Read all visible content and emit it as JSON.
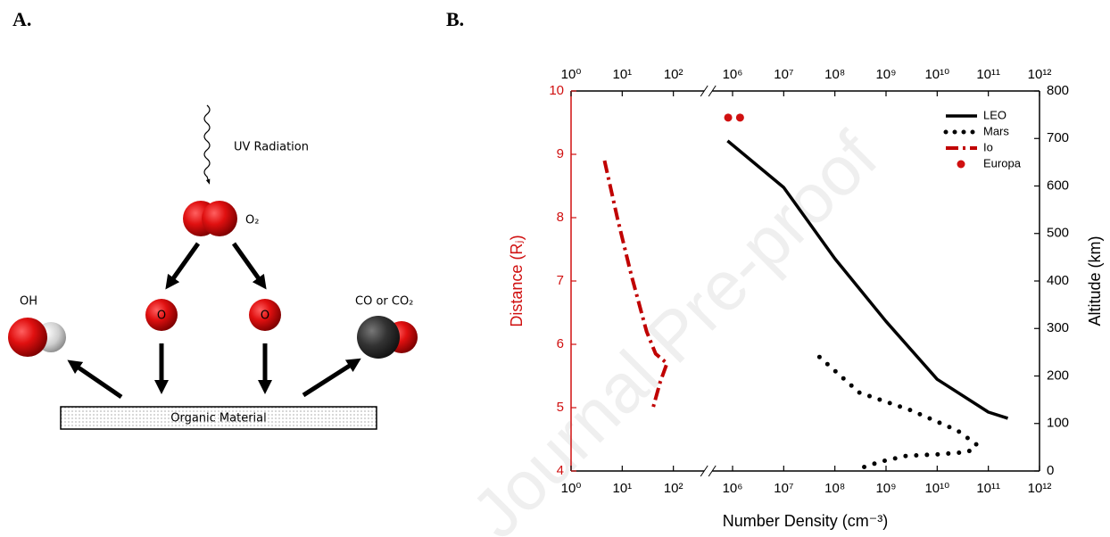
{
  "panel_a": {
    "label": "A.",
    "uv": "UV Radiation",
    "o2": "O₂",
    "o_left": "O",
    "o_right": "O",
    "oh": "OH",
    "co": "CO or CO₂",
    "substrate": "Organic Material"
  },
  "panel_b_label": "B.",
  "watermark": "Journal Pre-proof",
  "chart_data": {
    "type": "line",
    "xlabel": "Number Density (cm⁻³)",
    "ylabel": "Distance (Rⱼ)",
    "y2label": "Altitude (km)",
    "xscale": "log",
    "xlim": [
      1,
      1000000000000
    ],
    "xbreak": [
      400,
      400000
    ],
    "xticks": [
      {
        "value": 1,
        "label": "10⁰"
      },
      {
        "value": 10,
        "label": "10¹"
      },
      {
        "value": 100,
        "label": "10²"
      },
      {
        "value": 1000000,
        "label": "10⁶"
      },
      {
        "value": 10000000,
        "label": "10⁷"
      },
      {
        "value": 100000000,
        "label": "10⁸"
      },
      {
        "value": 1000000000,
        "label": "10⁹"
      },
      {
        "value": 10000000000,
        "label": "10¹⁰"
      },
      {
        "value": 100000000000,
        "label": "10¹¹"
      },
      {
        "value": 1000000000000,
        "label": "10¹²"
      }
    ],
    "ylim": [
      4,
      10
    ],
    "yticks": [
      4,
      5,
      6,
      7,
      8,
      9,
      10
    ],
    "y_color": "#d01010",
    "y2lim": [
      0,
      800
    ],
    "y2ticks": [
      0,
      100,
      200,
      300,
      400,
      500,
      600,
      700,
      800
    ],
    "legend": "upper right",
    "grid": false,
    "series": [
      {
        "name": "LEO",
        "color": "#000000",
        "style": "solid",
        "axis": "y2",
        "x": [
          800000,
          10000000,
          100000000,
          1000000000,
          10000000000,
          100000000000,
          240000000000
        ],
        "values": [
          695,
          597,
          447,
          315,
          193,
          124,
          111
        ]
      },
      {
        "name": "Mars",
        "color": "#000000",
        "style": "dotted",
        "axis": "y2",
        "x": [
          50000000,
          300000000,
          3000000000,
          25000000000,
          60000000000,
          40000000000,
          10000000000,
          2500000000,
          800000000,
          300000000
        ],
        "values": [
          240,
          165,
          128,
          85,
          55,
          40,
          35,
          32,
          20,
          5
        ]
      },
      {
        "name": "Io",
        "color": "#c00000",
        "style": "dashdot",
        "axis": "y",
        "x": [
          4.5,
          8,
          15,
          30,
          45,
          75,
          55,
          40
        ],
        "values": [
          8.9,
          8.0,
          7.1,
          6.2,
          5.85,
          5.7,
          5.4,
          5.0
        ]
      },
      {
        "name": "Europa",
        "color": "#d01010",
        "style": "marker",
        "axis": "y",
        "x": [
          820000,
          1400000
        ],
        "values": [
          9.58,
          9.58
        ]
      }
    ]
  }
}
